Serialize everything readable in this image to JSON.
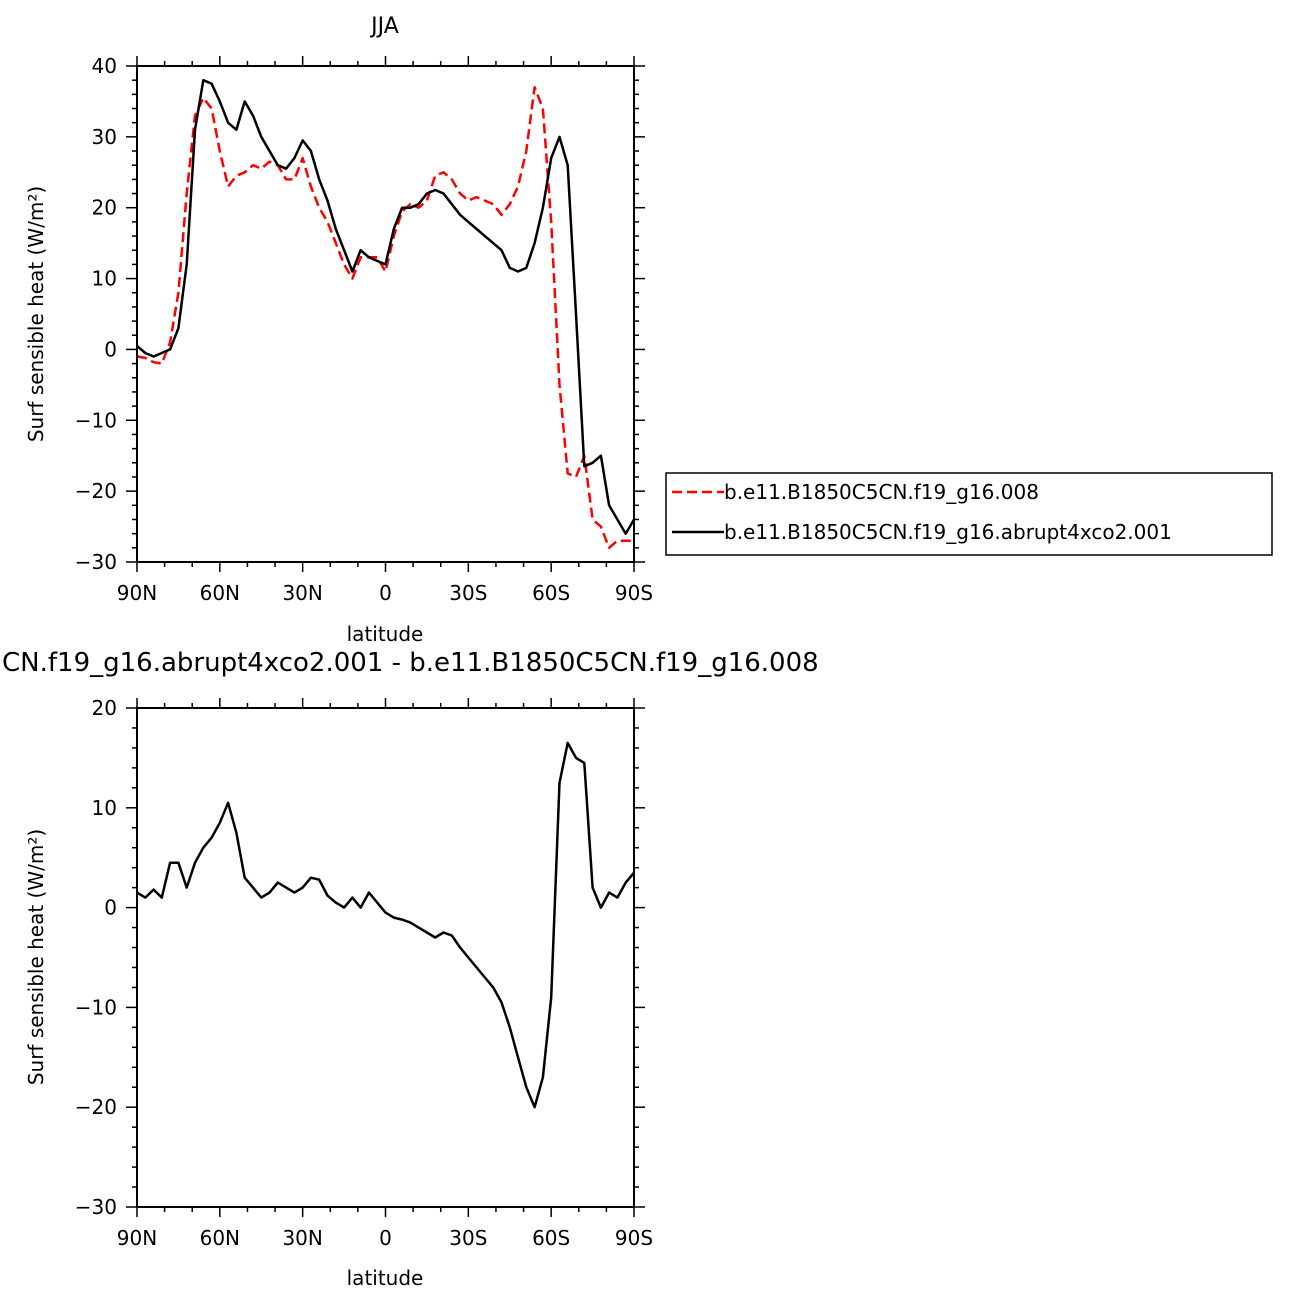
{
  "chart_data": [
    {
      "type": "line",
      "title": "JJA",
      "xlabel": "latitude",
      "ylabel": "Surf sensible heat (W/m²)",
      "xlim": [
        90,
        -90
      ],
      "ylim": [
        -30,
        40
      ],
      "xticks": [
        {
          "value": 90,
          "label": "90N"
        },
        {
          "value": 60,
          "label": "60N"
        },
        {
          "value": 30,
          "label": "30N"
        },
        {
          "value": 0,
          "label": "0"
        },
        {
          "value": -30,
          "label": "30S"
        },
        {
          "value": -60,
          "label": "60S"
        },
        {
          "value": -90,
          "label": "90S"
        }
      ],
      "yticks": [
        -30,
        -20,
        -10,
        0,
        10,
        20,
        30,
        40
      ],
      "grid": false,
      "legend_position": "right",
      "series": [
        {
          "name": "b.e11.B1850C5CN.f19_g16.008",
          "color": "#ff0000",
          "dash": "dashed",
          "x": [
            90,
            87,
            84,
            81,
            78,
            75,
            72,
            69,
            66,
            63,
            60,
            57,
            54,
            51,
            48,
            45,
            42,
            39,
            36,
            33,
            30,
            27,
            24,
            21,
            18,
            15,
            12,
            9,
            6,
            3,
            0,
            -3,
            -6,
            -9,
            -12,
            -15,
            -18,
            -21,
            -24,
            -27,
            -30,
            -33,
            -36,
            -39,
            -42,
            -45,
            -48,
            -51,
            -54,
            -57,
            -60,
            -63,
            -66,
            -69,
            -72,
            -75,
            -78,
            -81,
            -84,
            -87,
            -90
          ],
          "y": [
            -1,
            -1.2,
            -1.8,
            -2,
            1,
            8,
            22,
            33,
            35.5,
            34,
            28,
            23,
            24.5,
            25,
            26,
            25.5,
            26.5,
            26,
            24,
            24,
            27,
            23,
            20,
            18,
            15,
            12,
            10,
            13,
            13,
            13,
            11,
            16,
            19.5,
            20.5,
            20,
            21,
            24.5,
            25,
            24,
            22,
            21,
            21.5,
            21,
            20.5,
            19,
            20.5,
            23,
            28,
            37,
            34,
            18,
            -5,
            -17.5,
            -18,
            -15,
            -24,
            -25,
            -28,
            -27,
            -27,
            -27
          ]
        },
        {
          "name": "b.e11.B1850C5CN.f19_g16.abrupt4xco2.001",
          "color": "#000000",
          "dash": "solid",
          "x": [
            90,
            87,
            84,
            81,
            78,
            75,
            72,
            69,
            66,
            63,
            60,
            57,
            54,
            51,
            48,
            45,
            42,
            39,
            36,
            33,
            30,
            27,
            24,
            21,
            18,
            15,
            12,
            9,
            6,
            3,
            0,
            -3,
            -6,
            -9,
            -12,
            -15,
            -18,
            -21,
            -24,
            -27,
            -30,
            -33,
            -36,
            -39,
            -42,
            -45,
            -48,
            -51,
            -54,
            -57,
            -60,
            -63,
            -66,
            -69,
            -72,
            -75,
            -78,
            -81,
            -84,
            -87,
            -90
          ],
          "y": [
            0.5,
            -0.5,
            -1,
            -0.5,
            0,
            3,
            12,
            31,
            38,
            37.5,
            35,
            32,
            31,
            35,
            33,
            30,
            28,
            26,
            25.5,
            27,
            29.5,
            28,
            24,
            21,
            17,
            14,
            11,
            14,
            13,
            12.5,
            12,
            17,
            20,
            20,
            20.5,
            22,
            22.5,
            22,
            20.5,
            19,
            18,
            17,
            16,
            15,
            14,
            11.5,
            11,
            11.5,
            15,
            20,
            27,
            30,
            26,
            5,
            -16.5,
            -16,
            -15,
            -22,
            -24,
            -26,
            -24
          ]
        }
      ]
    },
    {
      "type": "line",
      "title": "CN.f19_g16.abrupt4xco2.001 - b.e11.B1850C5CN.f19_g16.008",
      "xlabel": "latitude",
      "ylabel": "Surf sensible heat (W/m²)",
      "xlim": [
        90,
        -90
      ],
      "ylim": [
        -30,
        20
      ],
      "xticks": [
        {
          "value": 90,
          "label": "90N"
        },
        {
          "value": 60,
          "label": "60N"
        },
        {
          "value": 30,
          "label": "30N"
        },
        {
          "value": 0,
          "label": "0"
        },
        {
          "value": -30,
          "label": "30S"
        },
        {
          "value": -60,
          "label": "60S"
        },
        {
          "value": -90,
          "label": "90S"
        }
      ],
      "yticks": [
        -30,
        -20,
        -10,
        0,
        10,
        20
      ],
      "grid": false,
      "series": [
        {
          "color": "#000000",
          "dash": "solid",
          "x": [
            90,
            87,
            84,
            81,
            78,
            75,
            72,
            69,
            66,
            63,
            60,
            57,
            54,
            51,
            48,
            45,
            42,
            39,
            36,
            33,
            30,
            27,
            24,
            21,
            18,
            15,
            12,
            9,
            6,
            3,
            0,
            -3,
            -6,
            -9,
            -12,
            -15,
            -18,
            -21,
            -24,
            -27,
            -30,
            -33,
            -36,
            -39,
            -42,
            -45,
            -48,
            -51,
            -54,
            -57,
            -60,
            -63,
            -66,
            -69,
            -72,
            -75,
            -78,
            -81,
            -84,
            -87,
            -90
          ],
          "y": [
            1.5,
            1,
            1.8,
            1,
            4.5,
            4.5,
            2,
            4.5,
            6,
            7,
            8.5,
            10.5,
            7.5,
            3,
            2,
            1,
            1.5,
            2.5,
            2,
            1.5,
            2,
            3,
            2.8,
            1.2,
            0.5,
            0,
            1,
            0,
            1.5,
            0.5,
            -0.5,
            -1,
            -1.2,
            -1.5,
            -2,
            -2.5,
            -3,
            -2.5,
            -2.8,
            -4,
            -5,
            -6,
            -7,
            -8,
            -9.5,
            -12,
            -15,
            -18,
            -20,
            -17,
            -9,
            12.5,
            16.5,
            15,
            14.5,
            2,
            0,
            1.5,
            1,
            2.5,
            3.5
          ]
        }
      ]
    }
  ]
}
